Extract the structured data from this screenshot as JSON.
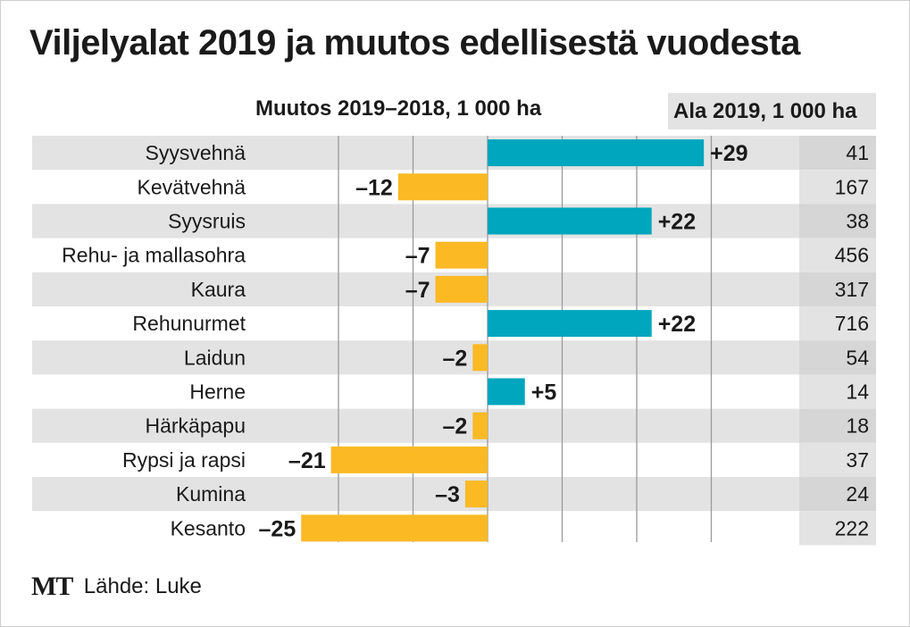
{
  "header": {
    "title": "Viljelyalat 2019 ja muutos edellisestä vuodesta",
    "change_header": "Muutos 2019–2018, 1 000 ha",
    "area_header": "Ala 2019, 1 000 ha"
  },
  "footer": {
    "logo": "MT",
    "source": "Lähde: Luke"
  },
  "colors": {
    "positive": "#00a6bd",
    "negative": "#fbb924",
    "row_band": "#e3e3e3",
    "area_band": "#d6d6d6",
    "gridline": "#9a9a9a",
    "text": "#1a1a1a"
  },
  "chart_data": {
    "type": "bar",
    "orientation": "horizontal",
    "categories": [
      "Syysvehnä",
      "Kevätvehnä",
      "Syysruis",
      "Rehu- ja mallasohra",
      "Kaura",
      "Rehunurmet",
      "Laidun",
      "Herne",
      "Härkäpapu",
      "Rypsi ja rapsi",
      "Kumina",
      "Kesanto"
    ],
    "series": [
      {
        "values": [
          29,
          -12,
          22,
          -7,
          -7,
          22,
          -2,
          5,
          -2,
          -21,
          -3,
          -25
        ],
        "labels": [
          "+29",
          "–12",
          "+22",
          "–7",
          "–7",
          "+22",
          "–2",
          "+5",
          "–2",
          "–21",
          "–3",
          "–25"
        ]
      }
    ],
    "area_2019": [
      "41",
      "167",
      "38",
      "456",
      "317",
      "716",
      "54",
      "14",
      "18",
      "37",
      "24",
      "222"
    ],
    "xlim": [
      -30,
      42
    ],
    "gridlines_at": [
      -20,
      -10,
      0,
      10,
      20,
      30
    ],
    "grid": true
  }
}
